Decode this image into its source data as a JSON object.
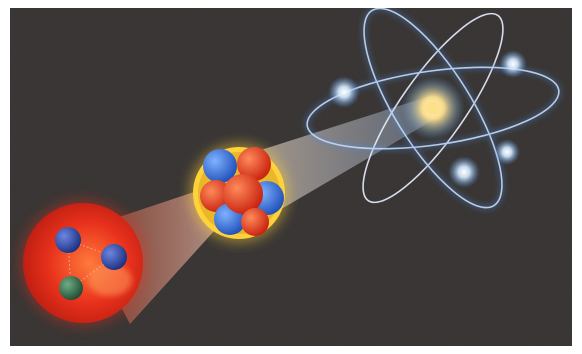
{
  "scene": {
    "background_color": "#3b3836",
    "frame_color": "#ffffff",
    "beam_color": "#f2c9b6",
    "atom": {
      "nucleus_color": "#ffe08a",
      "orbit_color": "#e8efff",
      "electron_color": "#d8ecff",
      "electron_glow_color": "#4f8fe0"
    },
    "nucleus": {
      "rim_color": "#ffd23a",
      "proton_color": "#e33a1c",
      "neutron_color": "#2f6fd6"
    },
    "nucleon": {
      "body_color": "#e8321c",
      "up_quark_color": "#243f9e",
      "down_quark_color": "#2f6e4a"
    }
  }
}
